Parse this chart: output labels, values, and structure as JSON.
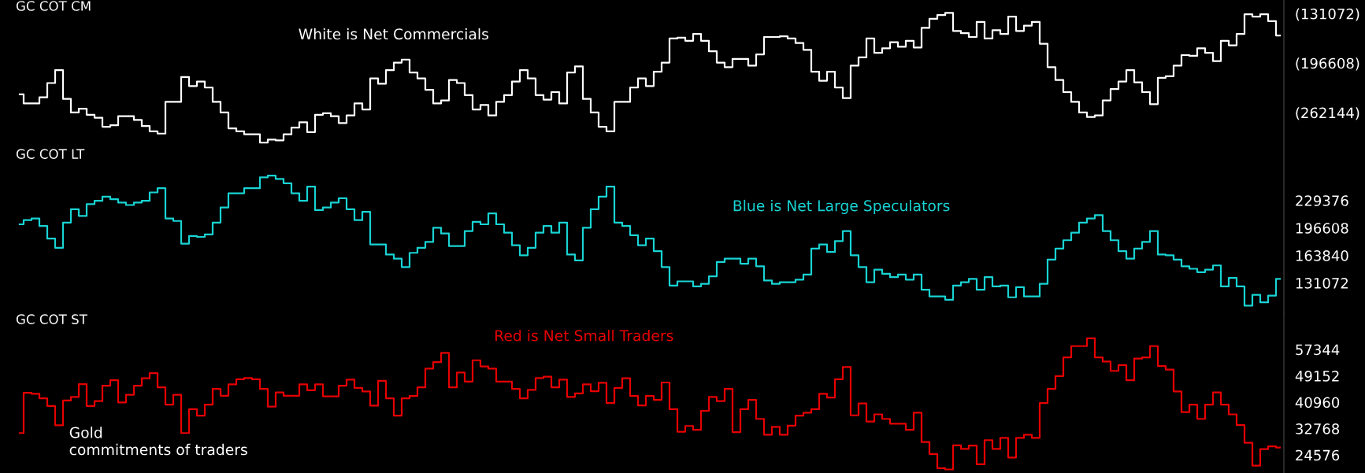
{
  "chart_data": [
    {
      "type": "step",
      "title": "GC COT CM",
      "annotations": [
        "White is Net Commercials"
      ],
      "tick_labels": "y",
      "categories": [
        null,
        null,
        null,
        null,
        null,
        null,
        null,
        null,
        null,
        null,
        null,
        null,
        null,
        null,
        null,
        null,
        null,
        null,
        null,
        null,
        null,
        null,
        null,
        null,
        null,
        null,
        null,
        null,
        null,
        null,
        null,
        null,
        null,
        null,
        null,
        null,
        null,
        null,
        null,
        null,
        null,
        null,
        null,
        null,
        null,
        null,
        null,
        null,
        null,
        null,
        null,
        null,
        null,
        null,
        null,
        null,
        null,
        null,
        null,
        null,
        null,
        null,
        null,
        null,
        null,
        null,
        null,
        null,
        null,
        null,
        null,
        null,
        null,
        null,
        null,
        null,
        null,
        null,
        null,
        null,
        null,
        null,
        null,
        null,
        null,
        null,
        null,
        null,
        null,
        null,
        null,
        null,
        null,
        null,
        null,
        null,
        null,
        null,
        null,
        null,
        null,
        null,
        null,
        null,
        null,
        null,
        null,
        null,
        null,
        null,
        null,
        null,
        null,
        null,
        null,
        null,
        null,
        null,
        null,
        null,
        null,
        null,
        null,
        null,
        null,
        null,
        null,
        null,
        null,
        null,
        null,
        null,
        null,
        null,
        null,
        null,
        null,
        null,
        null,
        null,
        null,
        null,
        null,
        null,
        null,
        null,
        null,
        null,
        null,
        null,
        null,
        null,
        null,
        null,
        null,
        null,
        null,
        null,
        null,
        null,
        null
      ],
      "ylim": [
        -308000,
        -113000
      ],
      "yticks": [
        {
          "value": -131072,
          "label": "(131072)"
        },
        {
          "value": -196608,
          "label": "(196608)"
        },
        {
          "value": -262144,
          "label": "(262144)"
        }
      ],
      "series": [
        {
          "color": "#ffffff",
          "values": [
            -238000,
            -250000,
            -250000,
            -242000,
            -223000,
            -206000,
            -244000,
            -262000,
            -257000,
            -265000,
            -269000,
            -281000,
            -279000,
            -267000,
            -267000,
            -272000,
            -280000,
            -287000,
            -290000,
            -248000,
            -248000,
            -215000,
            -227000,
            -221000,
            -229000,
            -248000,
            -262000,
            -283000,
            -287000,
            -291000,
            -291000,
            -302000,
            -298000,
            -299000,
            -291000,
            -282000,
            -275000,
            -288000,
            -265000,
            -263000,
            -267000,
            -276000,
            -266000,
            -250000,
            -258000,
            -217000,
            -224000,
            -206000,
            -196000,
            -192000,
            -209000,
            -217000,
            -232000,
            -250000,
            -246000,
            -219000,
            -223000,
            -239000,
            -258000,
            -252000,
            -266000,
            -248000,
            -239000,
            -221000,
            -206000,
            -217000,
            -239000,
            -245000,
            -235000,
            -250000,
            -209000,
            -201000,
            -244000,
            -262000,
            -281000,
            -287000,
            -248000,
            -248000,
            -229000,
            -217000,
            -227000,
            -208000,
            -196000,
            -164000,
            -163000,
            -167000,
            -158000,
            -167000,
            -181000,
            -196000,
            -202000,
            -191000,
            -191000,
            -200000,
            -185000,
            -162000,
            -162000,
            -161000,
            -164000,
            -170000,
            -179000,
            -208000,
            -220000,
            -208000,
            -229000,
            -243000,
            -200000,
            -189000,
            -164000,
            -183000,
            -177000,
            -169000,
            -175000,
            -167000,
            -176000,
            -150000,
            -138000,
            -133000,
            -130000,
            -154000,
            -157000,
            -162000,
            -142000,
            -164000,
            -153000,
            -158000,
            -135000,
            -154000,
            -147000,
            -142000,
            -171000,
            -202000,
            -219000,
            -235000,
            -248000,
            -262000,
            -268000,
            -266000,
            -246000,
            -231000,
            -221000,
            -206000,
            -222000,
            -235000,
            -251000,
            -216000,
            -214000,
            -200000,
            -186000,
            -187000,
            -177000,
            -183000,
            -194000,
            -167000,
            -173000,
            -158000,
            -132000,
            -135000,
            -132000,
            -141000,
            -160000
          ]
        }
      ]
    },
    {
      "type": "step",
      "title": "GC COT LT",
      "annotations": [
        "Blue is Net Large Speculators"
      ],
      "tick_labels": "y",
      "categories": [
        null,
        null,
        null,
        null,
        null,
        null,
        null,
        null,
        null,
        null,
        null,
        null,
        null,
        null,
        null,
        null,
        null,
        null,
        null,
        null,
        null,
        null,
        null,
        null,
        null,
        null,
        null,
        null,
        null,
        null,
        null,
        null,
        null,
        null,
        null,
        null,
        null,
        null,
        null,
        null,
        null,
        null,
        null,
        null,
        null,
        null,
        null,
        null,
        null,
        null,
        null,
        null,
        null,
        null,
        null,
        null,
        null,
        null,
        null,
        null,
        null,
        null,
        null,
        null,
        null,
        null,
        null,
        null,
        null,
        null,
        null,
        null,
        null,
        null,
        null,
        null,
        null,
        null,
        null,
        null,
        null,
        null,
        null,
        null,
        null,
        null,
        null,
        null,
        null,
        null,
        null,
        null,
        null,
        null,
        null,
        null,
        null,
        null,
        null,
        null,
        null,
        null,
        null,
        null,
        null,
        null,
        null,
        null,
        null,
        null,
        null,
        null,
        null,
        null,
        null,
        null,
        null,
        null,
        null,
        null,
        null,
        null,
        null,
        null,
        null,
        null,
        null,
        null,
        null,
        null,
        null,
        null,
        null,
        null,
        null,
        null,
        null,
        null,
        null,
        null,
        null,
        null,
        null,
        null,
        null,
        null,
        null,
        null,
        null,
        null,
        null,
        null,
        null,
        null,
        null,
        null,
        null,
        null,
        null,
        null,
        null
      ],
      "ylim": [
        95000,
        292000
      ],
      "yticks": [
        131072,
        163840,
        196608,
        229376
      ],
      "series": [
        {
          "color": "#19d3d3",
          "values": [
            201000,
            206000,
            208000,
            199000,
            184000,
            173000,
            203000,
            219000,
            211000,
            225000,
            229000,
            234000,
            231000,
            227000,
            224000,
            227000,
            229000,
            239000,
            244000,
            208000,
            205000,
            178000,
            187000,
            186000,
            189000,
            203000,
            221000,
            238000,
            238000,
            244000,
            244000,
            257000,
            259000,
            255000,
            250000,
            238000,
            229000,
            246000,
            218000,
            221000,
            227000,
            232000,
            219000,
            206000,
            216000,
            177000,
            177000,
            165000,
            160000,
            150000,
            167000,
            173000,
            180000,
            197000,
            190000,
            175000,
            175000,
            193000,
            204000,
            201000,
            214000,
            201000,
            191000,
            176000,
            164000,
            173000,
            191000,
            199000,
            191000,
            203000,
            165000,
            158000,
            197000,
            219000,
            234000,
            246000,
            203000,
            199000,
            188000,
            176000,
            184000,
            169000,
            150000,
            128000,
            133000,
            133000,
            127000,
            130000,
            139000,
            156000,
            160000,
            160000,
            154000,
            160000,
            151000,
            134000,
            130000,
            132000,
            132000,
            135000,
            141000,
            172000,
            177000,
            168000,
            181000,
            193000,
            164000,
            150000,
            132000,
            147000,
            142000,
            138000,
            141000,
            135000,
            141000,
            123000,
            115000,
            115000,
            111000,
            128000,
            132000,
            136000,
            123000,
            138000,
            127000,
            128000,
            114000,
            126000,
            115000,
            115000,
            130000,
            159000,
            172000,
            182000,
            191000,
            203000,
            208000,
            212000,
            193000,
            182000,
            169000,
            160000,
            172000,
            180000,
            193000,
            165000,
            164000,
            159000,
            151000,
            148000,
            144000,
            147000,
            152000,
            127000,
            137000,
            127000,
            104000,
            117000,
            108000,
            116000,
            136000
          ]
        }
      ]
    },
    {
      "type": "step",
      "title": "GC COT ST",
      "annotations": [
        "Red is Net Small Traders",
        "Gold\ncommitments of traders"
      ],
      "tick_labels": "y",
      "categories": [
        null,
        null,
        null,
        null,
        null,
        null,
        null,
        null,
        null,
        null,
        null,
        null,
        null,
        null,
        null,
        null,
        null,
        null,
        null,
        null,
        null,
        null,
        null,
        null,
        null,
        null,
        null,
        null,
        null,
        null,
        null,
        null,
        null,
        null,
        null,
        null,
        null,
        null,
        null,
        null,
        null,
        null,
        null,
        null,
        null,
        null,
        null,
        null,
        null,
        null,
        null,
        null,
        null,
        null,
        null,
        null,
        null,
        null,
        null,
        null,
        null,
        null,
        null,
        null,
        null,
        null,
        null,
        null,
        null,
        null,
        null,
        null,
        null,
        null,
        null,
        null,
        null,
        null,
        null,
        null,
        null,
        null,
        null,
        null,
        null,
        null,
        null,
        null,
        null,
        null,
        null,
        null,
        null,
        null,
        null,
        null,
        null,
        null,
        null,
        null,
        null,
        null,
        null,
        null,
        null,
        null,
        null,
        null,
        null,
        null,
        null,
        null,
        null,
        null,
        null,
        null,
        null,
        null,
        null,
        null,
        null,
        null,
        null,
        null,
        null,
        null,
        null,
        null,
        null,
        null,
        null,
        null,
        null,
        null,
        null,
        null,
        null,
        null,
        null,
        null,
        null,
        null,
        null,
        null,
        null,
        null,
        null,
        null,
        null,
        null,
        null,
        null,
        null,
        null,
        null,
        null,
        null,
        null,
        null,
        null,
        null
      ],
      "ylim": [
        19000,
        68600
      ],
      "yticks": [
        24576,
        32768,
        40960,
        49152,
        57344
      ],
      "series": [
        {
          "color": "#e60000",
          "values": [
            31400,
            43900,
            43600,
            42200,
            39800,
            33800,
            41500,
            42600,
            46600,
            39800,
            41300,
            46100,
            47800,
            40900,
            43300,
            46100,
            48400,
            50000,
            45600,
            40200,
            43300,
            31400,
            38800,
            36800,
            40200,
            45100,
            43000,
            46500,
            48100,
            48500,
            48100,
            45100,
            39600,
            44000,
            43000,
            43000,
            46500,
            44700,
            46500,
            42800,
            42800,
            46100,
            48000,
            45400,
            44300,
            39900,
            47600,
            42200,
            36800,
            42200,
            42900,
            45600,
            51400,
            53400,
            56300,
            45600,
            50200,
            47400,
            54000,
            52100,
            51400,
            47400,
            47400,
            45100,
            42200,
            44800,
            48500,
            48900,
            45600,
            48000,
            42600,
            43700,
            46500,
            44400,
            47000,
            40700,
            45400,
            48400,
            42900,
            40000,
            42900,
            41700,
            47100,
            38800,
            31800,
            33600,
            32400,
            38300,
            42600,
            41300,
            45100,
            31700,
            38800,
            41700,
            35800,
            30900,
            33300,
            30900,
            33700,
            36800,
            37700,
            38800,
            43600,
            42400,
            48100,
            51900,
            36900,
            40600,
            35000,
            37200,
            35800,
            34300,
            34300,
            32400,
            37700,
            28600,
            24900,
            20500,
            20100,
            27600,
            26500,
            27500,
            21700,
            29200,
            26500,
            29900,
            23800,
            29900,
            30900,
            29900,
            40700,
            45100,
            49100,
            54900,
            58400,
            58400,
            60800,
            54900,
            53600,
            50700,
            52500,
            47800,
            54500,
            54900,
            58400,
            52200,
            51100,
            44300,
            37900,
            40200,
            35800,
            40200,
            44000,
            40200,
            37200,
            33900,
            28400,
            21300,
            26400,
            27300,
            26900
          ]
        }
      ]
    }
  ]
}
